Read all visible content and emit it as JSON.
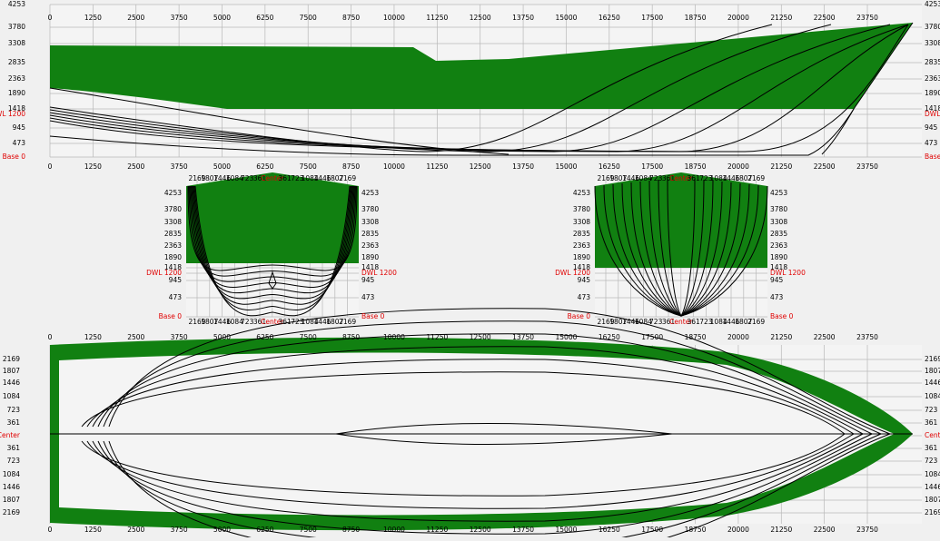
{
  "profile": {
    "x_ticks": [
      "0",
      "1250",
      "2500",
      "3750",
      "5000",
      "6250",
      "7500",
      "8750",
      "10000",
      "11250",
      "12500",
      "13750",
      "15000",
      "16250",
      "17500",
      "18750",
      "20000",
      "21250",
      "22500",
      "23750"
    ],
    "y_ticks": [
      "4253",
      "3780",
      "3308",
      "2835",
      "2363",
      "1890",
      "1418",
      "DWL 1200",
      "945",
      "473",
      "Base 0"
    ]
  },
  "body_plan": {
    "x_ticks": [
      "2169",
      "1807",
      "1446",
      "1084",
      "723",
      "361",
      "Center",
      "361",
      "723",
      "1084",
      "1446",
      "1807",
      "2169"
    ],
    "y_ticks": [
      "4253",
      "3780",
      "3308",
      "2835",
      "2363",
      "1890",
      "1418",
      "DWL 1200",
      "945",
      "473",
      "Base 0"
    ]
  },
  "plan": {
    "y_ticks": [
      "2169",
      "1807",
      "1446",
      "1084",
      "723",
      "361",
      "Center",
      "361",
      "723",
      "1084",
      "1446",
      "1807",
      "2169"
    ]
  }
}
